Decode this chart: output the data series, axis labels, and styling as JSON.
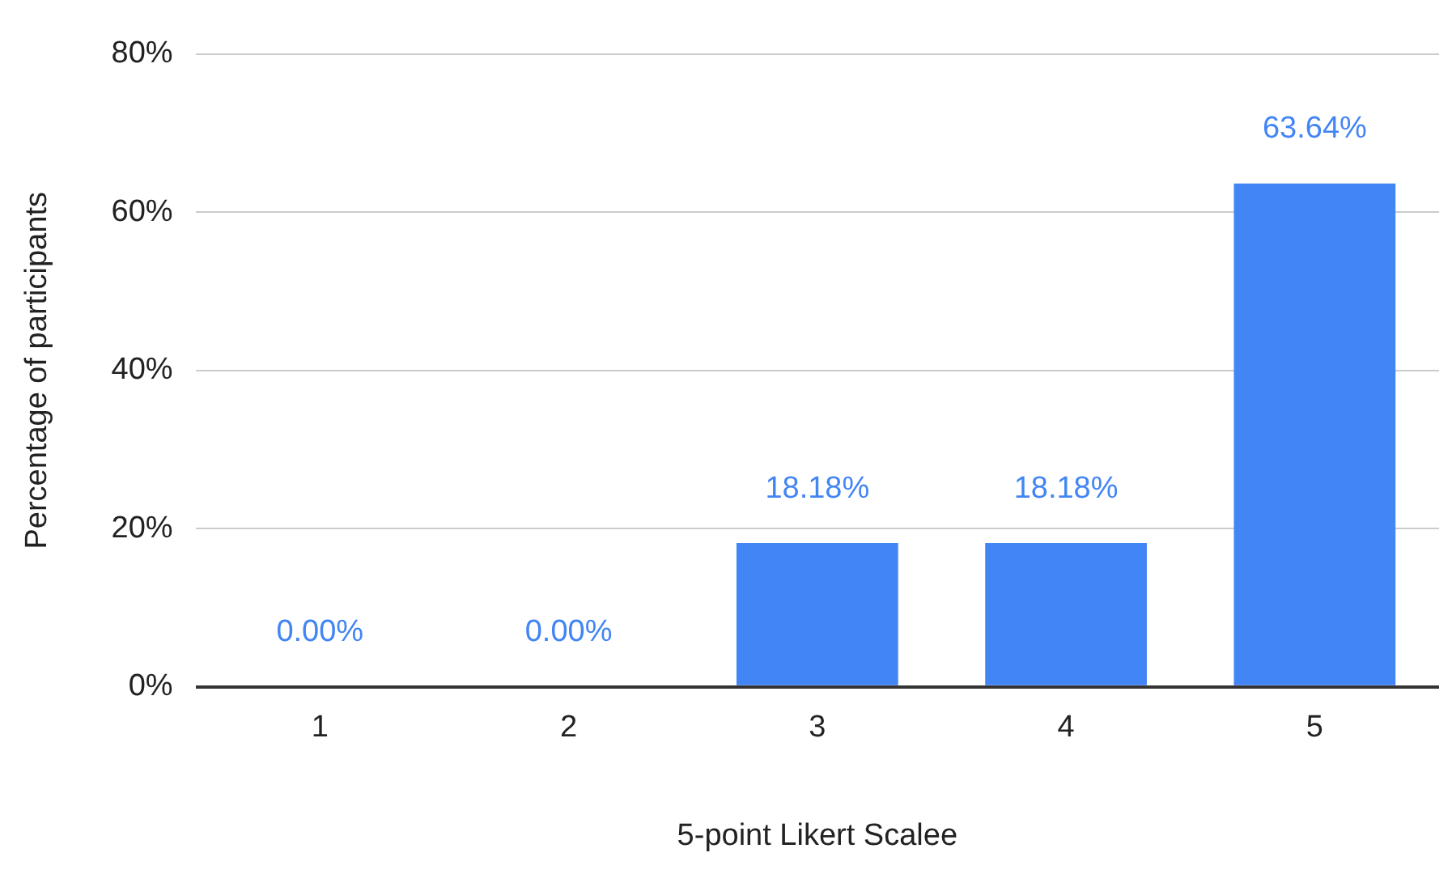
{
  "chart_data": {
    "type": "bar",
    "xlabel": "5-point Likert Scalee",
    "ylabel": "Percentage of participants",
    "categories": [
      "1",
      "2",
      "3",
      "4",
      "5"
    ],
    "values": [
      0,
      0,
      18.18,
      18.18,
      63.64
    ],
    "value_labels": [
      "0.00%",
      "0.00%",
      "18.18%",
      "18.18%",
      "63.64%"
    ],
    "color": "#4285f4",
    "ylim": [
      0,
      80
    ],
    "yticks": [
      {
        "value": 0,
        "label": "0%"
      },
      {
        "value": 20,
        "label": "20%"
      },
      {
        "value": 40,
        "label": "40%"
      },
      {
        "value": 60,
        "label": "60%"
      },
      {
        "value": 80,
        "label": "80%"
      }
    ],
    "grid": "y"
  }
}
